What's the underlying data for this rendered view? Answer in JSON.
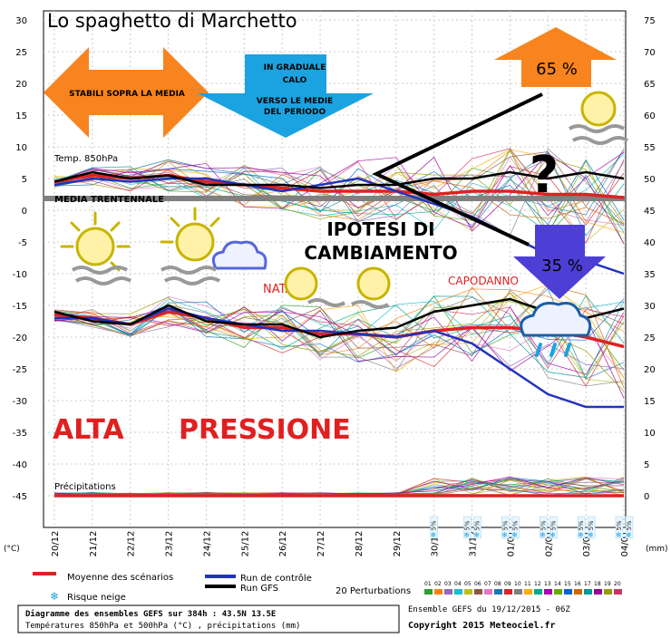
{
  "title": "Lo spaghetto di Marchetto",
  "chart_data": {
    "type": "line",
    "x_dates": [
      "20/12",
      "21/12",
      "22/12",
      "23/12",
      "24/12",
      "25/12",
      "26/12",
      "27/12",
      "28/12",
      "29/12",
      "30/12",
      "31/12",
      "01/01",
      "02/01",
      "03/01",
      "04/01"
    ],
    "left_axis_unit": "(°C)",
    "left_ticks": [
      30,
      25,
      20,
      15,
      10,
      5,
      0,
      -5,
      -10,
      -15,
      -20,
      -25,
      -30,
      -35,
      -40,
      -45
    ],
    "right_axis_unit": "(mm)",
    "right_ticks": [
      75,
      70,
      65,
      60,
      55,
      50,
      45,
      40,
      35,
      30,
      25,
      20,
      15,
      10,
      5,
      0
    ],
    "ylim": [
      -50,
      30
    ],
    "label_t850": "Temp. 850hPa",
    "label_media": "MEDIA TRENTENNALE",
    "label_precip": "Précipitations",
    "snow_risk_label": "5%",
    "series": [
      {
        "name": "Moyenne des scénarios",
        "color": "#dd2222",
        "t850": [
          4.5,
          5.5,
          5,
          5.5,
          4.5,
          4,
          3.5,
          3,
          3,
          3,
          2.5,
          3,
          3,
          2.5,
          2.5,
          2
        ],
        "t500": [
          -16.5,
          -17,
          -18,
          -16,
          -17,
          -18.5,
          -18.5,
          -19.5,
          -19.5,
          -20,
          -19,
          -18.5,
          -18.5,
          -19,
          -20,
          -21.5
        ]
      },
      {
        "name": "Run de contrôle",
        "color": "#2233bb",
        "t850": [
          4,
          5,
          4.5,
          5,
          5,
          4,
          3,
          4,
          5,
          3,
          1,
          -1,
          -4,
          -7,
          -8,
          -10
        ],
        "t500": [
          -17,
          -17,
          -18,
          -15.5,
          -17,
          -18,
          -19,
          -19,
          -19.5,
          -20,
          -19,
          -21,
          -25,
          -29,
          -31,
          -31
        ]
      },
      {
        "name": "Run GFS",
        "color": "#000000",
        "t850": [
          4.5,
          6,
          5,
          5.5,
          4,
          4,
          4,
          3.5,
          4,
          4,
          5,
          5,
          6,
          5,
          6,
          5
        ],
        "t500": [
          -16,
          -17.5,
          -18,
          -15,
          -17.5,
          -18,
          -18,
          -20,
          -19,
          -18.5,
          -16,
          -15,
          -14,
          -16,
          -17,
          -15.5
        ]
      }
    ],
    "legend": {
      "mean": "Moyenne des scénarios",
      "control": "Run de contrôle",
      "gfs": "Run GFS",
      "snow": "Risque neige",
      "perturbations": "20 Perturbations",
      "codes": [
        "01",
        "02",
        "03",
        "04",
        "05",
        "06",
        "07",
        "08",
        "09",
        "10",
        "11",
        "12",
        "13",
        "14",
        "15",
        "16",
        "17",
        "18",
        "19",
        "20"
      ]
    },
    "footer": {
      "line1": "Diagramme des ensembles GEFS sur 384h : 43.5N 13.5E",
      "line2": "Températures 850hPa et 500hPa (°C) , précipitations (mm)",
      "ensemble": "Ensemble GEFS du 19/12/2015 - 06Z",
      "copyright": "Copyright 2015 Meteociel.fr"
    }
  },
  "annotations": {
    "left_arrow": "STABILI SOPRA LA MEDIA",
    "down_arrow_1": "IN GRADUALE",
    "down_arrow_2": "CALO",
    "down_arrow_3": "VERSO LE MEDIE",
    "down_arrow_4": "DEL PERIODO",
    "up_pct": "65 %",
    "down_pct": "35 %",
    "question": "?",
    "change_1": "IPOTESI DI",
    "change_2": "CAMBIAMENTO",
    "natale": "NATALE",
    "capodanno": "CAPODANNO",
    "alta": "ALTA",
    "pressione": "PRESSIONE"
  },
  "colors": {
    "orange": "#f7841f",
    "cyan": "#1aa3e0",
    "purple": "#4d3fd6",
    "red_text": "#e02020",
    "media_line": "#808080"
  }
}
